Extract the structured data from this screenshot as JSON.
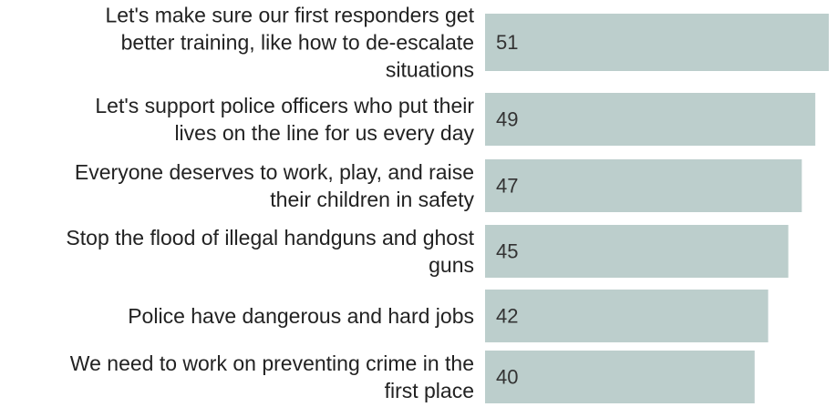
{
  "chart_data": {
    "type": "bar",
    "orientation": "horizontal",
    "categories": [
      "Let's make sure our first responders get better training, like how to de-escalate situations",
      "Let's support police officers who put their lives on the line for us every day",
      "Everyone deserves to work, play, and raise their children in safety",
      "Stop the flood of illegal handguns and ghost guns",
      "Police have dangerous and hard jobs",
      "We need to work on preventing crime in the first place"
    ],
    "category_lines": [
      [
        "Let's make sure our first responders get",
        "better training, like how to de-escalate",
        "situations"
      ],
      [
        "Let's support police officers who put their",
        "lives on the line for us every day"
      ],
      [
        "Everyone deserves to work, play, and raise",
        "their children in safety"
      ],
      [
        "Stop the flood of illegal handguns and ghost",
        "guns"
      ],
      [
        "Police have dangerous and hard jobs"
      ],
      [
        "We need to work on preventing crime in the",
        "first place"
      ]
    ],
    "values": [
      51,
      49,
      47,
      45,
      42,
      40
    ],
    "value_labels": [
      "51",
      "49",
      "47",
      "45",
      "42",
      "40"
    ],
    "bar_color": "#bccecc",
    "title": "",
    "xlabel": "",
    "ylabel": "",
    "xlim": [
      0,
      51
    ],
    "grid": false,
    "legend": "none"
  }
}
